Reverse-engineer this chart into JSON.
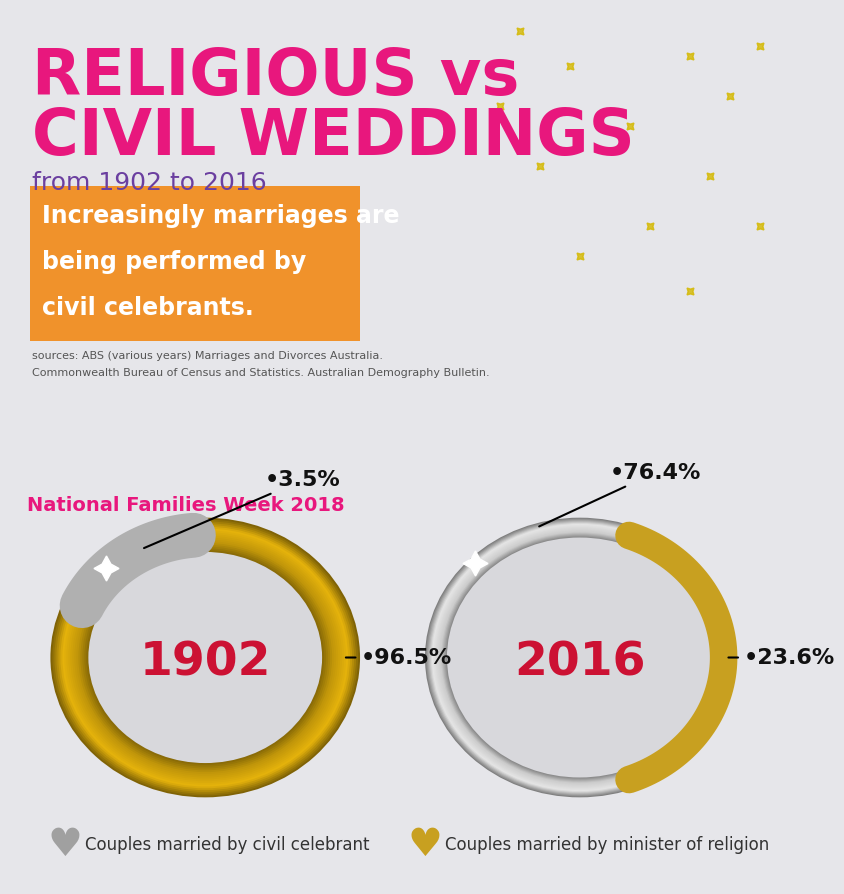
{
  "title_line1": "RELIGIOUS vs",
  "title_line2": "CIVIL WEDDINGS",
  "subtitle": "from 1902 to 2016",
  "highlight_text_lines": [
    "Increasingly marriages are",
    "being performed by",
    "civil celebrants."
  ],
  "sources_line1": "sources: ABS (various years) Marriages and Divorces Australia.",
  "sources_line2": "Commonwealth Bureau of Census and Statistics. Australian Demography Bulletin.",
  "footer_text": "National Families Week 2018",
  "year1": "1902",
  "year2": "2016",
  "civil_1902": "•3.5%",
  "religious_1902": "•96.5%",
  "civil_2016": "•76.4%",
  "religious_2016": "•23.6%",
  "bg_top": "#e6e6ea",
  "bg_bottom": "#d8d8dc",
  "title_color": "#e8177d",
  "subtitle_color": "#6b3fa0",
  "highlight_bg": "#f0922b",
  "highlight_text_color": "#ffffff",
  "footer_bg": "#f9c8d4",
  "footer_text_color": "#e8177d",
  "year_color": "#cc1133",
  "annotation_color": "#111111",
  "legend_civil_color": "#a0a0a0",
  "legend_religion_color": "#c8a020",
  "star_color": "#d4b800",
  "gold_mid": "#d4a820",
  "gold_light": "#f0d060",
  "gold_dark": "#a07810",
  "silver_mid": "#c0c0c0",
  "silver_light": "#e8e8e8",
  "silver_dark": "#888888"
}
